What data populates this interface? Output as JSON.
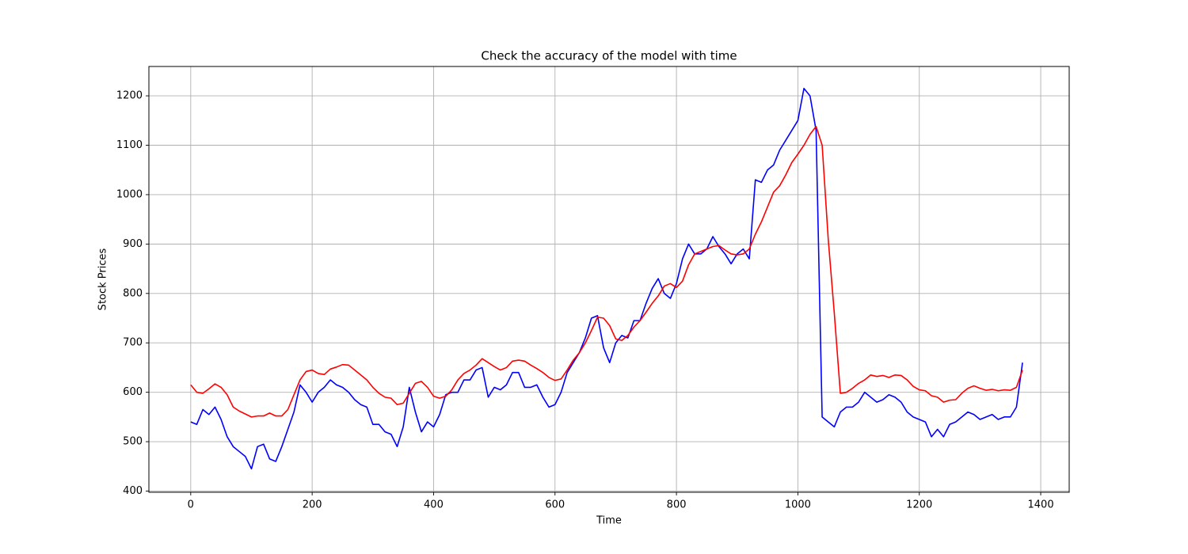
{
  "chart_data": {
    "type": "line",
    "title": "Check the accuracy of the model with time",
    "x_label": "Time",
    "y_label": "Stock Prices",
    "x": [
      0,
      10,
      20,
      30,
      40,
      50,
      60,
      70,
      80,
      90,
      100,
      110,
      120,
      130,
      140,
      150,
      160,
      170,
      180,
      190,
      200,
      210,
      220,
      230,
      240,
      250,
      260,
      270,
      280,
      290,
      300,
      310,
      320,
      330,
      340,
      350,
      360,
      370,
      380,
      390,
      400,
      410,
      420,
      430,
      440,
      450,
      460,
      470,
      480,
      490,
      500,
      510,
      520,
      530,
      540,
      550,
      560,
      570,
      580,
      590,
      600,
      610,
      620,
      630,
      640,
      650,
      660,
      670,
      680,
      690,
      700,
      710,
      720,
      730,
      740,
      750,
      760,
      770,
      780,
      790,
      800,
      810,
      820,
      830,
      840,
      850,
      860,
      870,
      880,
      890,
      900,
      910,
      920,
      930,
      940,
      950,
      960,
      970,
      980,
      990,
      1000,
      1010,
      1020,
      1030,
      1040,
      1050,
      1060,
      1070,
      1080,
      1090,
      1100,
      1110,
      1120,
      1130,
      1140,
      1150,
      1160,
      1170,
      1180,
      1190,
      1200,
      1210,
      1220,
      1230,
      1240,
      1250,
      1260,
      1270,
      1280,
      1290,
      1300,
      1310,
      1320,
      1330,
      1340,
      1350,
      1360,
      1370
    ],
    "series": [
      {
        "color": "#0000ff",
        "values": [
          540,
          535,
          565,
          555,
          570,
          545,
          510,
          490,
          480,
          470,
          445,
          490,
          495,
          465,
          460,
          490,
          525,
          560,
          615,
          600,
          580,
          600,
          610,
          625,
          615,
          610,
          600,
          585,
          575,
          570,
          535,
          535,
          520,
          515,
          490,
          530,
          610,
          560,
          520,
          540,
          530,
          555,
          595,
          600,
          600,
          625,
          625,
          645,
          650,
          590,
          610,
          605,
          615,
          640,
          640,
          610,
          610,
          615,
          590,
          570,
          575,
          600,
          640,
          660,
          680,
          710,
          750,
          755,
          690,
          660,
          700,
          715,
          710,
          745,
          745,
          780,
          810,
          830,
          800,
          790,
          820,
          870,
          900,
          880,
          880,
          890,
          915,
          895,
          880,
          860,
          880,
          890,
          870,
          1030,
          1025,
          1050,
          1060,
          1090,
          1110,
          1130,
          1150,
          1215,
          1200,
          1130,
          550,
          540,
          530,
          560,
          570,
          570,
          580,
          600,
          590,
          580,
          585,
          595,
          590,
          580,
          560,
          550,
          545,
          540,
          510,
          525,
          510,
          535,
          540,
          550,
          560,
          555,
          545,
          550,
          555,
          545,
          550,
          550,
          570,
          660
        ]
      },
      {
        "color": "#ff0000",
        "values": [
          615,
          600,
          598,
          607,
          617,
          610,
          595,
          570,
          562,
          556,
          550,
          552,
          552,
          558,
          552,
          552,
          565,
          595,
          625,
          642,
          645,
          638,
          636,
          647,
          651,
          656,
          655,
          645,
          635,
          625,
          610,
          598,
          590,
          588,
          575,
          578,
          598,
          618,
          622,
          610,
          592,
          588,
          592,
          605,
          625,
          638,
          645,
          655,
          668,
          660,
          652,
          645,
          650,
          663,
          665,
          663,
          655,
          648,
          640,
          630,
          624,
          627,
          645,
          665,
          680,
          700,
          725,
          752,
          750,
          735,
          708,
          705,
          715,
          732,
          745,
          762,
          780,
          795,
          815,
          820,
          812,
          825,
          858,
          880,
          885,
          890,
          895,
          897,
          888,
          880,
          878,
          880,
          890,
          920,
          945,
          975,
          1005,
          1018,
          1040,
          1065,
          1082,
          1100,
          1122,
          1138,
          1100,
          910,
          760,
          598,
          600,
          608,
          618,
          625,
          635,
          632,
          634,
          630,
          635,
          634,
          625,
          612,
          605,
          603,
          593,
          590,
          580,
          584,
          585,
          598,
          608,
          613,
          608,
          604,
          606,
          603,
          605,
          604,
          610,
          645
        ]
      }
    ],
    "xlim": [
      -68.9,
      1446.9
    ],
    "ylim": [
      397.6,
      1259.4
    ],
    "xticks": [
      0,
      200,
      400,
      600,
      800,
      1000,
      1200,
      1400
    ],
    "yticks": [
      400,
      500,
      600,
      700,
      800,
      900,
      1000,
      1100,
      1200
    ],
    "grid": true
  }
}
